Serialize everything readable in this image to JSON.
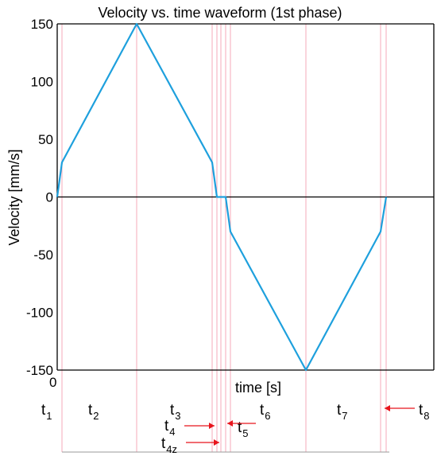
{
  "chart_data": {
    "type": "line",
    "title": "Velocity vs. time waveform  (1st phase)",
    "xlabel": "time [s]",
    "ylabel": "Velocity [mm/s]",
    "x_origin_label": "0",
    "ylim": [
      -150,
      150
    ],
    "yticks": [
      150,
      100,
      50,
      0,
      -50,
      -100,
      -150
    ],
    "grid": false,
    "colors": {
      "series": "#1ea0dd",
      "markers": "#f4a8b8",
      "arrows": "#e8141c"
    },
    "series": [
      {
        "values": [
          0,
          30,
          150,
          30,
          0,
          0,
          -30,
          -150,
          -30,
          0
        ]
      }
    ],
    "phase_labels": [
      {
        "main": "t",
        "sub": "1"
      },
      {
        "main": "t",
        "sub": "2"
      },
      {
        "main": "t",
        "sub": "3"
      },
      {
        "main": "t",
        "sub": "4"
      },
      {
        "main": "t",
        "sub": "4z"
      },
      {
        "main": "t",
        "sub": "5"
      },
      {
        "main": "t",
        "sub": "6"
      },
      {
        "main": "t",
        "sub": "7"
      },
      {
        "main": "t",
        "sub": "8"
      }
    ]
  }
}
